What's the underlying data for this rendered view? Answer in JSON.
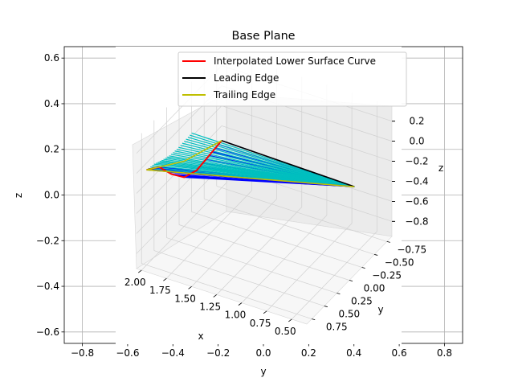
{
  "chart_data": {
    "type": "line",
    "title": "Base Plane",
    "outer_axes": {
      "xlabel": "y",
      "ylabel": "z",
      "xlim": [
        -0.88,
        0.88
      ],
      "ylim": [
        -0.65,
        0.65
      ],
      "xticks": [
        "−0.8",
        "−0.6",
        "−0.4",
        "−0.2",
        "0.0",
        "0.2",
        "0.4",
        "0.6",
        "0.8"
      ],
      "yticks": [
        "−0.6",
        "−0.4",
        "−0.2",
        "0.0",
        "0.2",
        "0.4",
        "0.6"
      ],
      "grid": true
    },
    "axes3d": {
      "x": {
        "label": "x",
        "range": [
          0.35,
          2.05
        ],
        "ticks": [
          "0.50",
          "0.75",
          "1.00",
          "1.25",
          "1.50",
          "1.75",
          "2.00"
        ]
      },
      "y": {
        "label": "y",
        "range": [
          -0.85,
          0.85
        ],
        "ticks": [
          "−0.75",
          "−0.50",
          "−0.25",
          "0.00",
          "0.25",
          "0.50",
          "0.75"
        ]
      },
      "z": {
        "label": "z",
        "range": [
          -0.95,
          0.35
        ],
        "ticks": [
          "0.2",
          "0.0",
          "−0.2",
          "−0.4",
          "−0.6",
          "−0.8"
        ]
      },
      "grid": true
    },
    "legend": {
      "placement": "upper right",
      "entries": [
        {
          "label": "Interpolated Lower Surface Curve",
          "color": "#ff0000"
        },
        {
          "label": "Leading Edge",
          "color": "#000000"
        },
        {
          "label": "Trailing Edge",
          "color": "#bfbf00"
        }
      ]
    },
    "series": [
      {
        "name": "Interpolated Lower Surface Curve",
        "color": "#ff0000",
        "x": [
          2.0,
          2.0,
          2.0,
          2.0,
          2.0,
          2.0,
          2.0
        ],
        "y": [
          -0.75,
          -0.5,
          -0.25,
          0.0,
          0.25,
          0.5,
          0.75
        ],
        "z": [
          -0.48,
          -0.5,
          -0.52,
          -0.46,
          -0.3,
          -0.1,
          0.0
        ]
      },
      {
        "name": "Leading Edge",
        "color": "#000000",
        "x": [
          0.3,
          2.0
        ],
        "y": [
          0.0,
          -0.75
        ],
        "z": [
          0.0,
          -0.48
        ]
      },
      {
        "name": "Trailing Edge",
        "color": "#bfbf00",
        "x": [
          0.3,
          2.0,
          2.0,
          2.0
        ],
        "y": [
          0.0,
          0.75,
          0.0,
          -0.75
        ],
        "z": [
          0.0,
          0.0,
          -0.3,
          -0.48
        ]
      }
    ],
    "colors": {
      "surface_lines": "#0000ff",
      "surface_upper": "#00bfbf",
      "grid": "#b0b0b0"
    }
  }
}
